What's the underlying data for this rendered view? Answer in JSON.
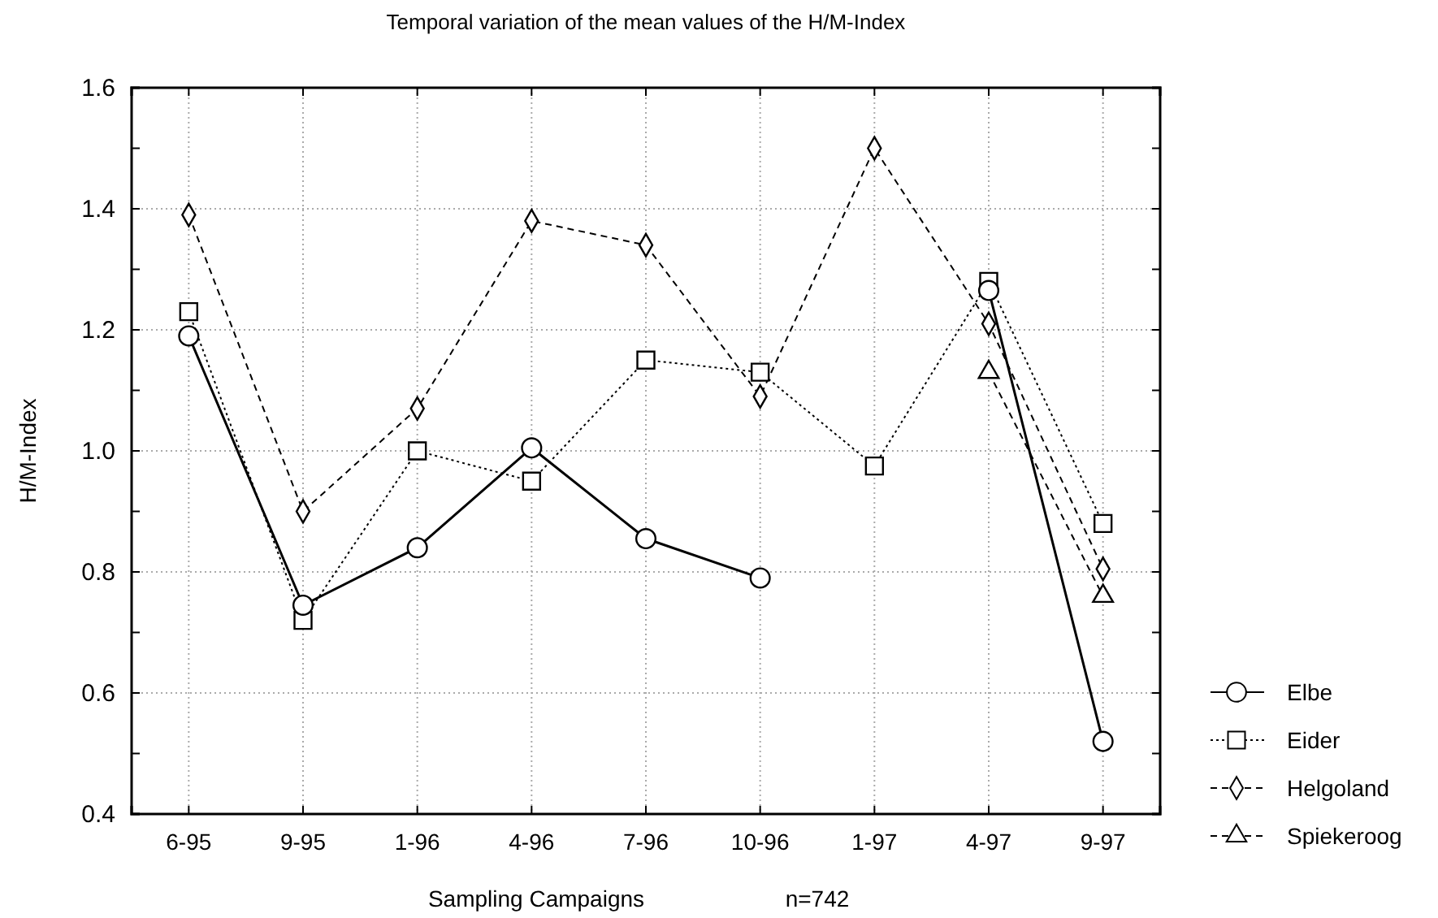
{
  "chart_data": {
    "type": "line",
    "title": "Temporal variation of the mean values of the H/M-Index",
    "xlabel": "Sampling Campaigns",
    "ylabel": "H/M-Index",
    "annotations": [
      "n=742"
    ],
    "categories": [
      "6-95",
      "9-95",
      "1-96",
      "4-96",
      "7-96",
      "10-96",
      "1-97",
      "4-97",
      "9-97"
    ],
    "ylim": [
      0.4,
      1.6
    ],
    "yticks": [
      0.4,
      {
        "value": 0.5,
        "label": null
      },
      0.6,
      {
        "value": 0.7,
        "label": null
      },
      0.8,
      {
        "value": 0.9,
        "label": null
      },
      {
        "value": 1.0,
        "label": "1.0"
      },
      {
        "value": 1.1,
        "label": null
      },
      1.2,
      {
        "value": 1.3,
        "label": null
      },
      1.4,
      {
        "value": 1.5,
        "label": null
      },
      1.6
    ],
    "grid": true,
    "legend": "right",
    "series": [
      {
        "name": "Elbe",
        "color": "#000000",
        "marker": "circle",
        "line_style": "solid",
        "values": [
          1.19,
          0.745,
          0.84,
          1.005,
          0.855,
          0.79,
          null,
          1.265,
          0.52
        ]
      },
      {
        "name": "Eider",
        "color": "#000000",
        "marker": "square",
        "line_style": "dotted",
        "values": [
          1.23,
          0.72,
          1.0,
          0.95,
          1.15,
          1.13,
          0.975,
          1.28,
          0.88
        ]
      },
      {
        "name": "Helgoland",
        "color": "#000000",
        "marker": "diamond",
        "line_style": "dashed",
        "values": [
          1.39,
          0.9,
          1.07,
          1.38,
          1.34,
          1.09,
          1.5,
          1.21,
          0.805
        ]
      },
      {
        "name": "Spiekeroog",
        "color": "#000000",
        "marker": "triangle",
        "line_style": "dashed",
        "values": [
          null,
          null,
          null,
          null,
          null,
          null,
          null,
          1.13,
          0.76
        ]
      }
    ]
  }
}
